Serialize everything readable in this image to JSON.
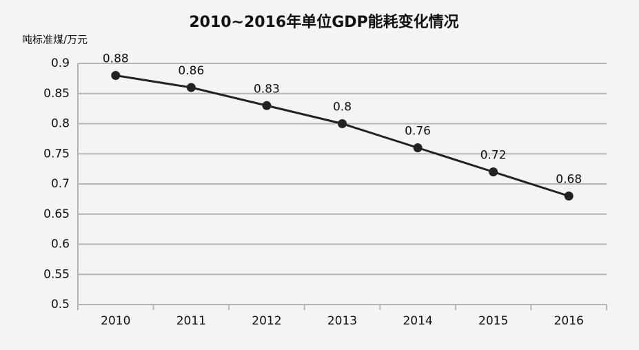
{
  "chart_data": {
    "type": "line",
    "title": "2010~2016年单位GDP能耗变化情况",
    "y_label": "吨标准煤/万元",
    "categories": [
      "2010",
      "2011",
      "2012",
      "2013",
      "2014",
      "2015",
      "2016"
    ],
    "series": [
      {
        "color": "#222222",
        "values": [
          0.88,
          0.86,
          0.83,
          0.8,
          0.76,
          0.72,
          0.68
        ]
      }
    ],
    "ylim": [
      0.5,
      0.9
    ],
    "yticks": [
      0.5,
      0.55,
      0.6,
      0.65,
      0.7,
      0.75,
      0.8,
      0.85,
      0.9
    ],
    "grid": true
  }
}
